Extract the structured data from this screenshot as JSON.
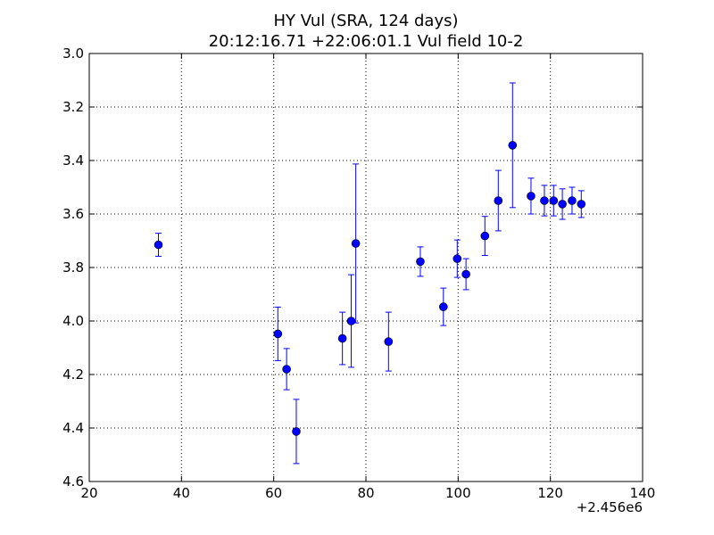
{
  "chart_data": {
    "type": "scatter",
    "title_line1": "HY Vul (SRA, 124 days)",
    "title_line2": "20:12:16.71 +22:06:01.1 Vul field 10-2",
    "xlabel": "",
    "ylabel": "",
    "x_offset_label": "+2.456e6",
    "xlim": [
      20,
      140
    ],
    "ylim": [
      3.0,
      4.6
    ],
    "y_inverted": true,
    "grid": true,
    "marker_color": "#0000ff",
    "errorbar_color": "#0000ff",
    "x_ticks": [
      20,
      40,
      60,
      80,
      100,
      120,
      140
    ],
    "x_tick_labels": [
      "20",
      "40",
      "60",
      "80",
      "100",
      "120",
      "140"
    ],
    "y_ticks": [
      3.0,
      3.2,
      3.4,
      3.6,
      3.8,
      4.0,
      4.2,
      4.4,
      4.6
    ],
    "y_tick_labels": [
      "3.0",
      "3.2",
      "3.4",
      "3.6",
      "3.8",
      "4.0",
      "4.2",
      "4.4",
      "4.6"
    ],
    "points": [
      {
        "x": 35.0,
        "y": 3.715,
        "err": 0.043
      },
      {
        "x": 60.9,
        "y": 4.048,
        "err": 0.1
      },
      {
        "x": 62.8,
        "y": 4.18,
        "err": 0.077
      },
      {
        "x": 64.9,
        "y": 4.413,
        "err": 0.12
      },
      {
        "x": 74.9,
        "y": 4.065,
        "err": 0.098
      },
      {
        "x": 76.8,
        "y": 4.0,
        "err": 0.173
      },
      {
        "x": 77.8,
        "y": 3.71,
        "err": 0.297
      },
      {
        "x": 84.9,
        "y": 4.077,
        "err": 0.11
      },
      {
        "x": 91.8,
        "y": 3.778,
        "err": 0.055
      },
      {
        "x": 96.8,
        "y": 3.947,
        "err": 0.07
      },
      {
        "x": 99.8,
        "y": 3.767,
        "err": 0.07
      },
      {
        "x": 101.7,
        "y": 3.825,
        "err": 0.058
      },
      {
        "x": 105.8,
        "y": 3.682,
        "err": 0.073
      },
      {
        "x": 108.7,
        "y": 3.55,
        "err": 0.113
      },
      {
        "x": 111.8,
        "y": 3.343,
        "err": 0.233
      },
      {
        "x": 115.8,
        "y": 3.533,
        "err": 0.067
      },
      {
        "x": 118.7,
        "y": 3.55,
        "err": 0.057
      },
      {
        "x": 120.7,
        "y": 3.55,
        "err": 0.057
      },
      {
        "x": 122.6,
        "y": 3.563,
        "err": 0.057
      },
      {
        "x": 124.7,
        "y": 3.55,
        "err": 0.05
      },
      {
        "x": 126.7,
        "y": 3.563,
        "err": 0.05
      }
    ]
  }
}
